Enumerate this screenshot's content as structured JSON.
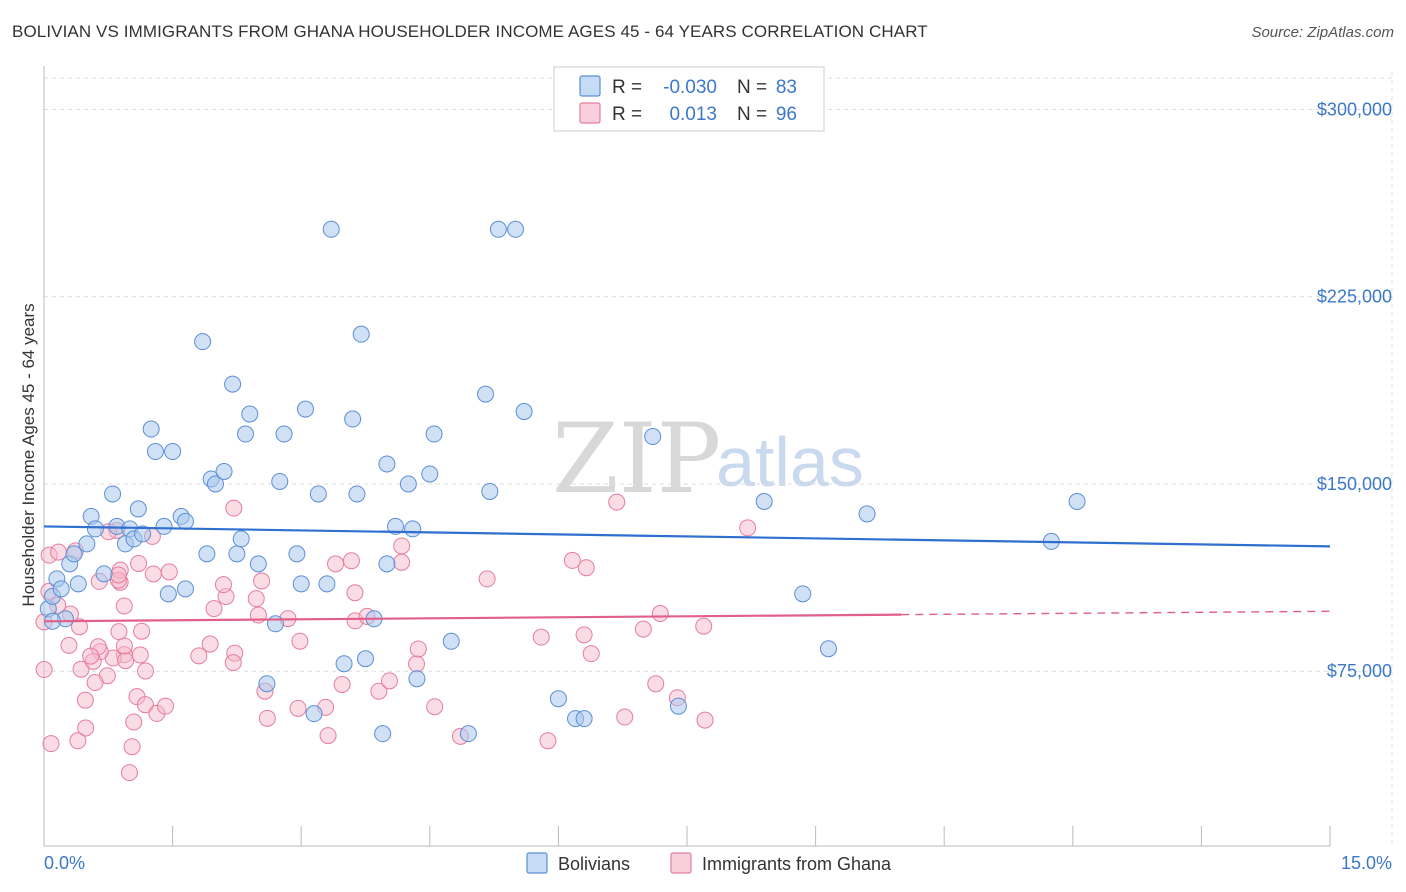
{
  "title": "BOLIVIAN VS IMMIGRANTS FROM GHANA HOUSEHOLDER INCOME AGES 45 - 64 YEARS CORRELATION CHART",
  "source": "Source: ZipAtlas.com",
  "watermark": {
    "zip": "ZIP",
    "atlas": "atlas"
  },
  "legend": {
    "rows": [
      {
        "r_label": "R =",
        "r_value": "-0.030",
        "n_label": "N =",
        "n_value": "83"
      },
      {
        "r_label": "R =",
        "r_value": "0.013",
        "n_label": "N =",
        "n_value": "96"
      }
    ]
  },
  "bottom_legend": [
    "Bolivians",
    "Immigrants from Ghana"
  ],
  "colors": {
    "blue_fill": "#a9c8ef",
    "blue_stroke": "#5b8fd6",
    "blue_line": "#2e6fcf",
    "pink_fill": "#f6b9cc",
    "pink_stroke": "#e57d9f",
    "pink_line": "#e0608a",
    "axis_text": "#3b78c9",
    "grid": "#dddddd"
  },
  "chart_data": {
    "type": "scatter",
    "title": "BOLIVIAN VS IMMIGRANTS FROM GHANA HOUSEHOLDER INCOME AGES 45 - 64 YEARS CORRELATION CHART",
    "xlabel": "",
    "ylabel": "Householder Income Ages 45 - 64 years",
    "xlim": [
      0,
      15
    ],
    "ylim": [
      5000,
      315000
    ],
    "x_tick_labels": [
      "0.0%",
      "15.0%"
    ],
    "y_ticks": [
      75000,
      150000,
      225000,
      300000
    ],
    "y_tick_labels": [
      "$75,000",
      "$150,000",
      "$225,000",
      "$300,000"
    ],
    "grid": true,
    "series": [
      {
        "name": "Bolivians",
        "r": -0.03,
        "n": 83,
        "trend": {
          "x": [
            0,
            15
          ],
          "y": [
            133000,
            125000
          ],
          "dashed_from": null
        },
        "points": [
          [
            0.05,
            100000
          ],
          [
            0.1,
            105000
          ],
          [
            0.15,
            112000
          ],
          [
            0.2,
            108000
          ],
          [
            0.25,
            96000
          ],
          [
            0.3,
            118000
          ],
          [
            0.35,
            122000
          ],
          [
            0.4,
            110000
          ],
          [
            0.5,
            126000
          ],
          [
            0.55,
            137000
          ],
          [
            0.6,
            132000
          ],
          [
            0.7,
            114000
          ],
          [
            0.8,
            146000
          ],
          [
            0.85,
            133000
          ],
          [
            0.95,
            126000
          ],
          [
            1.0,
            132000
          ],
          [
            1.05,
            128000
          ],
          [
            1.1,
            140000
          ],
          [
            1.15,
            130000
          ],
          [
            1.25,
            172000
          ],
          [
            1.3,
            163000
          ],
          [
            1.4,
            133000
          ],
          [
            1.45,
            106000
          ],
          [
            1.5,
            163000
          ],
          [
            1.6,
            137000
          ],
          [
            1.65,
            108000
          ],
          [
            1.65,
            135000
          ],
          [
            1.85,
            207000
          ],
          [
            1.9,
            122000
          ],
          [
            1.95,
            152000
          ],
          [
            2.0,
            150000
          ],
          [
            2.1,
            155000
          ],
          [
            2.2,
            190000
          ],
          [
            2.25,
            122000
          ],
          [
            2.3,
            128000
          ],
          [
            2.35,
            170000
          ],
          [
            2.4,
            178000
          ],
          [
            2.5,
            118000
          ],
          [
            2.6,
            70000
          ],
          [
            2.7,
            94000
          ],
          [
            2.75,
            151000
          ],
          [
            2.8,
            170000
          ],
          [
            2.95,
            122000
          ],
          [
            3.0,
            110000
          ],
          [
            3.05,
            180000
          ],
          [
            3.15,
            58000
          ],
          [
            3.2,
            146000
          ],
          [
            3.3,
            110000
          ],
          [
            3.35,
            252000
          ],
          [
            3.5,
            78000
          ],
          [
            3.6,
            176000
          ],
          [
            3.65,
            146000
          ],
          [
            3.7,
            210000
          ],
          [
            3.75,
            80000
          ],
          [
            3.85,
            96000
          ],
          [
            3.95,
            50000
          ],
          [
            4.0,
            118000
          ],
          [
            4.0,
            158000
          ],
          [
            4.1,
            133000
          ],
          [
            4.25,
            150000
          ],
          [
            4.3,
            132000
          ],
          [
            4.35,
            72000
          ],
          [
            4.5,
            154000
          ],
          [
            4.55,
            170000
          ],
          [
            4.75,
            87000
          ],
          [
            4.95,
            50000
          ],
          [
            5.15,
            186000
          ],
          [
            5.2,
            147000
          ],
          [
            5.3,
            252000
          ],
          [
            5.5,
            252000
          ],
          [
            5.6,
            179000
          ],
          [
            6.0,
            64000
          ],
          [
            6.2,
            56000
          ],
          [
            6.3,
            56000
          ],
          [
            7.1,
            169000
          ],
          [
            7.4,
            61000
          ],
          [
            8.4,
            143000
          ],
          [
            8.85,
            106000
          ],
          [
            9.15,
            84000
          ],
          [
            9.6,
            138000
          ],
          [
            11.75,
            127000
          ],
          [
            12.05,
            143000
          ],
          [
            0.1,
            95000
          ]
        ]
      },
      {
        "name": "Immigrants from Ghana",
        "r": 0.013,
        "n": 96,
        "trend": {
          "x": [
            0,
            15
          ],
          "y": [
            95000,
            99000
          ],
          "dashed_from": 10
        }
      }
    ]
  }
}
